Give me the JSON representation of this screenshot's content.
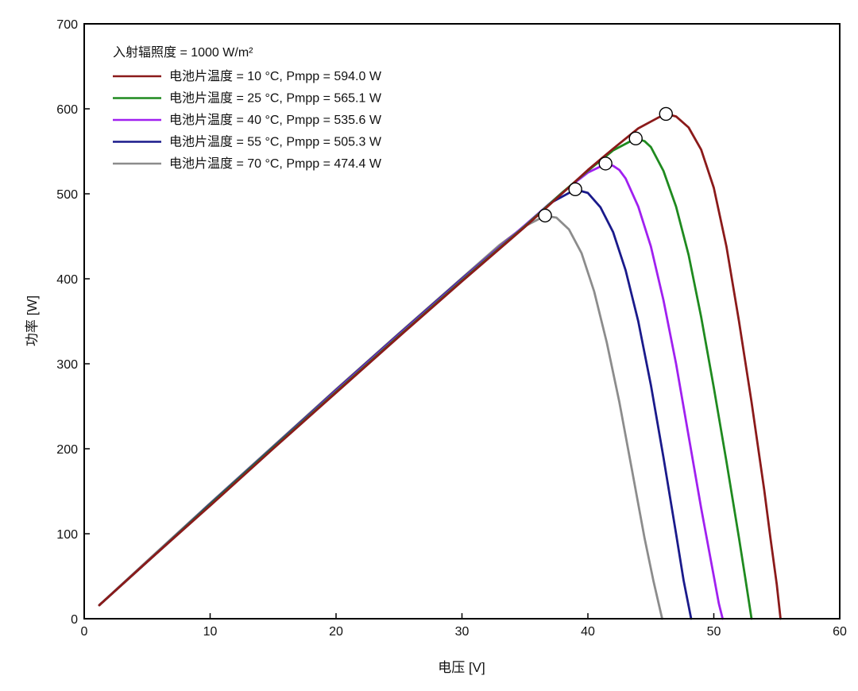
{
  "chart_data": {
    "type": "line",
    "title": "",
    "xlabel": "电压 [V]",
    "ylabel": "功率 [W]",
    "xlim": [
      0,
      60
    ],
    "ylim": [
      0,
      700
    ],
    "xticks": [
      0,
      10,
      20,
      30,
      40,
      50,
      60
    ],
    "yticks": [
      0,
      100,
      200,
      300,
      400,
      500,
      600,
      700
    ],
    "grid": false,
    "legend_position": "top-left",
    "legend_header": "入射辐照度 = 1000 W/m²",
    "series": [
      {
        "name": "电池片温度 = 10 °C,  Pmpp = 594.0 W",
        "color": "#8b1a1a",
        "mpp": [
          46.2,
          594.0
        ],
        "x": [
          1.2,
          5,
          10,
          15,
          20,
          25,
          30,
          35,
          38,
          40,
          42,
          44,
          45.5,
          46.2,
          47,
          48,
          49,
          50,
          51,
          52,
          53,
          54,
          54.5,
          55,
          55.3
        ],
        "y": [
          16,
          67,
          133,
          200,
          266,
          332,
          397,
          461,
          501,
          528,
          553,
          577,
          589,
          594,
          591,
          578,
          552,
          507,
          438,
          350,
          255,
          152,
          95,
          40,
          0
        ]
      },
      {
        "name": "电池片温度 = 25 °C,  Pmpp = 565.1 W",
        "color": "#1f8a1f",
        "mpp": [
          43.8,
          565.1
        ],
        "x": [
          1.2,
          5,
          10,
          15,
          20,
          25,
          30,
          35,
          38,
          40,
          42,
          43.8,
          44.5,
          45,
          46,
          47,
          48,
          49,
          50,
          51,
          52,
          52.5,
          53
        ],
        "y": [
          16,
          67,
          134,
          201,
          267,
          333,
          398,
          462,
          502,
          527,
          551,
          565,
          562,
          555,
          527,
          485,
          428,
          355,
          272,
          185,
          95,
          48,
          0
        ]
      },
      {
        "name": "电池片温度 = 40 °C,  Pmpp = 535.6 W",
        "color": "#a020f0",
        "mpp": [
          41.4,
          535.6
        ],
        "x": [
          1.2,
          5,
          10,
          15,
          20,
          25,
          30,
          35,
          38,
          40,
          41.4,
          42,
          42.5,
          43,
          44,
          45,
          46,
          47,
          48,
          49,
          50,
          50.4,
          50.7
        ],
        "y": [
          16,
          67,
          134,
          201,
          268,
          334,
          399,
          463,
          502,
          525,
          535,
          533,
          528,
          518,
          485,
          438,
          375,
          300,
          215,
          130,
          50,
          18,
          0
        ]
      },
      {
        "name": "电池片温度 = 55 °C,  Pmpp = 505.3 W",
        "color": "#1a1a8b",
        "mpp": [
          39.0,
          505.3
        ],
        "x": [
          1.2,
          5,
          10,
          15,
          20,
          25,
          30,
          35,
          37,
          39,
          40,
          41,
          42,
          43,
          44,
          45,
          46,
          47,
          47.6,
          48.2
        ],
        "y": [
          16,
          67,
          135,
          202,
          269,
          335,
          400,
          463,
          489,
          505,
          501,
          484,
          455,
          410,
          350,
          275,
          190,
          100,
          45,
          0
        ]
      },
      {
        "name": "电池片温度 = 70 °C,  Pmpp = 474.4 W",
        "color": "#8c8c8c",
        "mpp": [
          36.6,
          474.4
        ],
        "x": [
          1.2,
          5,
          10,
          15,
          20,
          25,
          30,
          33,
          35,
          36.6,
          37.5,
          38.5,
          39.5,
          40.5,
          41.5,
          42.5,
          43.5,
          44.5,
          45.2,
          45.9
        ],
        "y": [
          16,
          68,
          136,
          203,
          270,
          336,
          401,
          440,
          462,
          474,
          472,
          458,
          430,
          385,
          325,
          255,
          175,
          95,
          45,
          0
        ]
      }
    ]
  }
}
